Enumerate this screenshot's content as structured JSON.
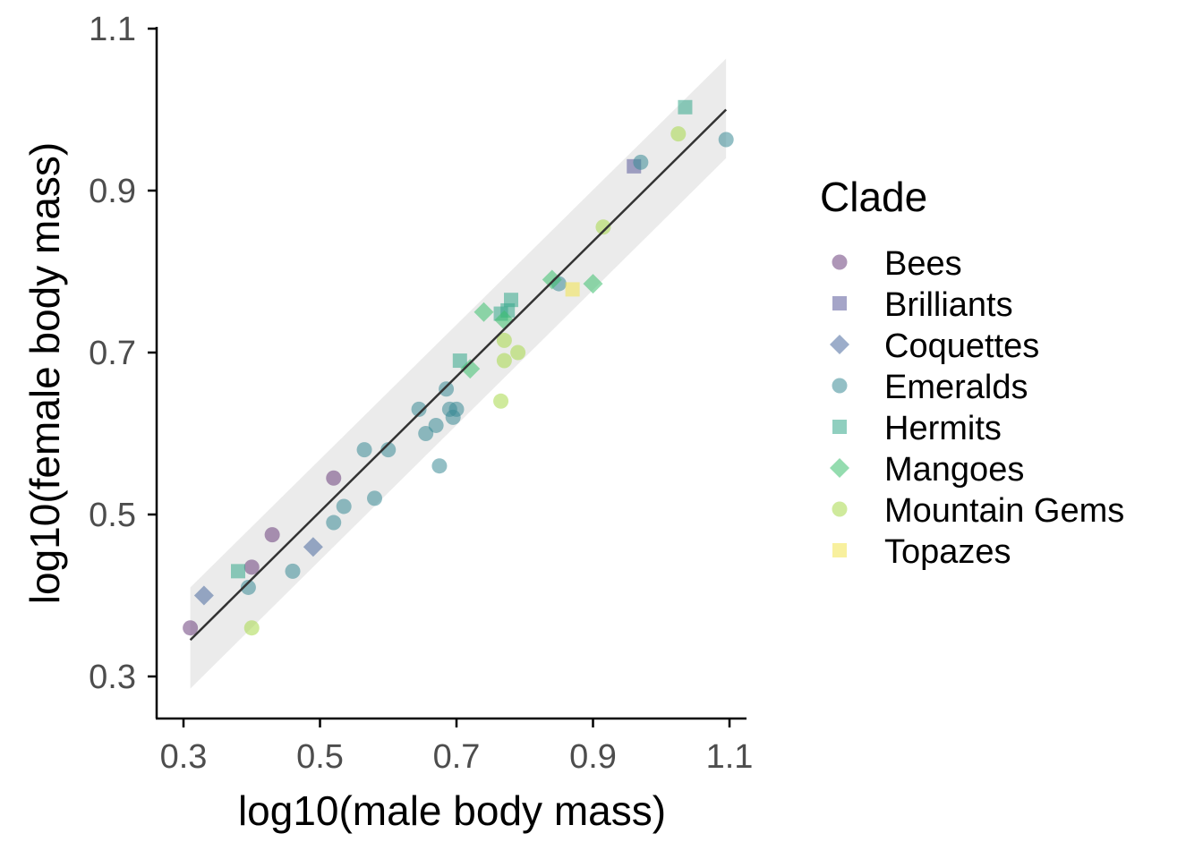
{
  "chart_data": {
    "type": "scatter",
    "xlabel": "log10(male body mass)",
    "ylabel": "log10(female body mass)",
    "xlim": [
      0.27,
      1.125
    ],
    "ylim": [
      0.25,
      1.1
    ],
    "x_ticks": [
      "0.3",
      "0.5",
      "0.7",
      "0.9",
      "1.1"
    ],
    "y_ticks": [
      "0.3",
      "0.5",
      "0.7",
      "0.9",
      "1.1"
    ],
    "grid": false,
    "legend": {
      "title": "Clade",
      "position": "right"
    },
    "fit": {
      "type": "linear",
      "x_range": [
        0.31,
        1.095
      ],
      "y_start": 0.345,
      "y_end": 1.0,
      "band_start": [
        0.285,
        0.41
      ],
      "band_end": [
        0.94,
        1.063
      ]
    },
    "series": [
      {
        "name": "Bees",
        "shape": "circle",
        "color": "#6b3f7c",
        "points": [
          [
            0.31,
            0.36
          ],
          [
            0.4,
            0.435
          ],
          [
            0.43,
            0.475
          ],
          [
            0.52,
            0.545
          ]
        ]
      },
      {
        "name": "Brilliants",
        "shape": "square",
        "color": "#5b5b9b",
        "points": [
          [
            0.96,
            0.93
          ]
        ]
      },
      {
        "name": "Coquettes",
        "shape": "diamond",
        "color": "#4a6a9f",
        "points": [
          [
            0.33,
            0.4
          ],
          [
            0.49,
            0.46
          ]
        ]
      },
      {
        "name": "Emeralds",
        "shape": "circle",
        "color": "#3a8a96",
        "points": [
          [
            0.395,
            0.41
          ],
          [
            0.46,
            0.43
          ],
          [
            0.52,
            0.49
          ],
          [
            0.535,
            0.51
          ],
          [
            0.565,
            0.58
          ],
          [
            0.58,
            0.52
          ],
          [
            0.6,
            0.58
          ],
          [
            0.645,
            0.63
          ],
          [
            0.655,
            0.6
          ],
          [
            0.67,
            0.61
          ],
          [
            0.675,
            0.56
          ],
          [
            0.685,
            0.655
          ],
          [
            0.69,
            0.63
          ],
          [
            0.695,
            0.62
          ],
          [
            0.7,
            0.63
          ],
          [
            0.85,
            0.785
          ],
          [
            0.97,
            0.935
          ],
          [
            1.095,
            0.963
          ]
        ]
      },
      {
        "name": "Hermits",
        "shape": "square",
        "color": "#34a88a",
        "points": [
          [
            0.38,
            0.43
          ],
          [
            0.705,
            0.69
          ],
          [
            0.765,
            0.748
          ],
          [
            0.775,
            0.752
          ],
          [
            0.78,
            0.765
          ],
          [
            1.035,
            1.003
          ]
        ]
      },
      {
        "name": "Mangoes",
        "shape": "diamond",
        "color": "#3dbf6e",
        "points": [
          [
            0.72,
            0.68
          ],
          [
            0.74,
            0.75
          ],
          [
            0.77,
            0.74
          ],
          [
            0.84,
            0.79
          ],
          [
            0.9,
            0.785
          ]
        ]
      },
      {
        "name": "Mountain Gems",
        "shape": "circle",
        "color": "#a8d94a",
        "points": [
          [
            0.4,
            0.36
          ],
          [
            0.765,
            0.64
          ],
          [
            0.77,
            0.69
          ],
          [
            0.77,
            0.715
          ],
          [
            0.79,
            0.7
          ],
          [
            0.915,
            0.855
          ],
          [
            1.025,
            0.97
          ]
        ]
      },
      {
        "name": "Topazes",
        "shape": "square",
        "color": "#f2e34f",
        "points": [
          [
            0.87,
            0.778
          ]
        ]
      }
    ]
  }
}
